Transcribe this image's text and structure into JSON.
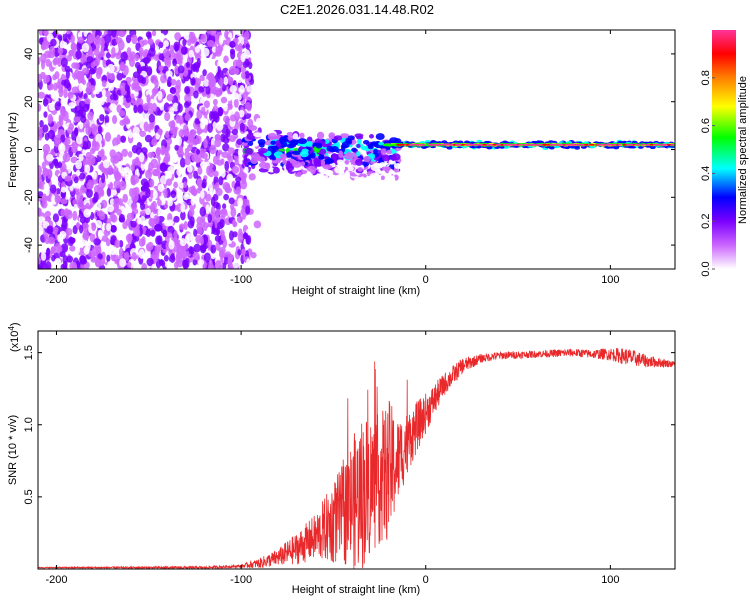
{
  "title": "C2E1.2026.031.14.48.R02",
  "colors": {
    "snr_line": "#e8282a",
    "axis": "#000000"
  },
  "chart_data": [
    {
      "type": "heatmap",
      "name": "spectrogram",
      "xlabel": "Height of straight line (km)",
      "ylabel": "Frequency (Hz)",
      "xlim": [
        -210,
        135
      ],
      "ylim": [
        -50,
        50
      ],
      "xticks": [
        -200,
        -100,
        0,
        100
      ],
      "yticks": [
        -40,
        -20,
        0,
        20,
        40
      ],
      "xtick_labels": [
        "-200",
        "-100",
        "0",
        "100"
      ],
      "ytick_labels": [
        "-40",
        "-20",
        "0",
        "20",
        "40"
      ],
      "colorbar": {
        "label": "Normalized spectral amplitude",
        "range": [
          0,
          1
        ],
        "ticks": [
          0.0,
          0.2,
          0.4,
          0.6,
          0.8
        ],
        "tick_labels": [
          "0.0",
          "0.2",
          "0.4",
          "0.6",
          "0.8"
        ],
        "colormap": [
          "#ffffff",
          "#cc66ff",
          "#7a00ff",
          "#0000ff",
          "#00ffff",
          "#00ff00",
          "#ffff00",
          "#ff7f00",
          "#ff0000",
          "#ff3399"
        ]
      },
      "features": {
        "noise_region_x": [
          -210,
          -95
        ],
        "signal_onset_x": -98,
        "carrier_freq_hz": 2,
        "carrier_start_x": -30
      }
    },
    {
      "type": "line",
      "name": "snr",
      "xlabel": "Height of straight line (km)",
      "ylabel": "SNR (10 * v/v)",
      "y_multiplier_label": "(x10",
      "y_multiplier_exp": "4",
      "y_multiplier_close": ")",
      "xlim": [
        -210,
        135
      ],
      "ylim": [
        0,
        1.65
      ],
      "xticks": [
        -200,
        -100,
        0,
        100
      ],
      "yticks": [
        0.5,
        1.0,
        1.5
      ],
      "xtick_labels": [
        "-200",
        "-100",
        "0",
        "100"
      ],
      "ytick_labels": [
        "0.5",
        "1.0",
        "1.5"
      ],
      "envelope": {
        "x": [
          -210,
          -120,
          -100,
          -90,
          -80,
          -70,
          -60,
          -50,
          -45,
          -40,
          -35,
          -30,
          -25,
          -20,
          -15,
          -10,
          -5,
          0,
          10,
          20,
          30,
          40,
          60,
          80,
          90,
          100,
          110,
          120,
          135
        ],
        "y": [
          0.01,
          0.01,
          0.02,
          0.04,
          0.08,
          0.14,
          0.22,
          0.32,
          0.38,
          0.45,
          0.52,
          0.58,
          0.62,
          0.68,
          0.75,
          0.88,
          0.98,
          1.08,
          1.28,
          1.41,
          1.46,
          1.48,
          1.49,
          1.5,
          1.49,
          1.49,
          1.47,
          1.44,
          1.42
        ]
      },
      "noise_amplitude": {
        "x": [
          -210,
          -100,
          -80,
          -60,
          -45,
          -35,
          -25,
          -20,
          -15,
          -10,
          -5,
          0,
          10,
          30,
          60,
          90,
          110,
          135
        ],
        "y": [
          0.003,
          0.01,
          0.06,
          0.16,
          0.35,
          0.55,
          0.45,
          0.5,
          0.3,
          0.22,
          0.18,
          0.14,
          0.08,
          0.03,
          0.025,
          0.03,
          0.06,
          0.02
        ]
      }
    }
  ]
}
